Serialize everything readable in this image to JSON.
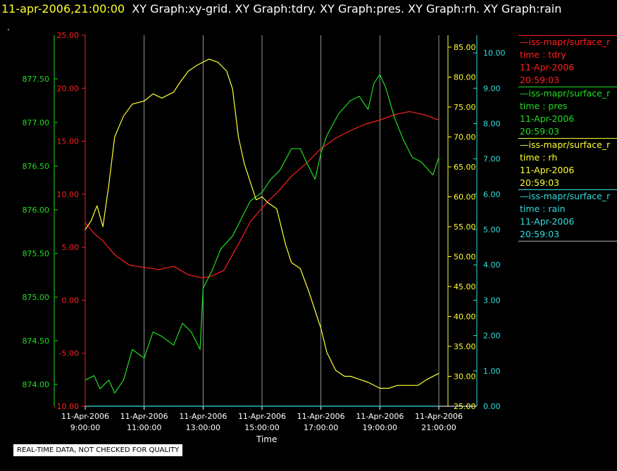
{
  "header": {
    "timestamp": "11-apr-2006,21:00:00",
    "graphs": "XY Graph:xy-grid.  XY Graph:tdry.  XY Graph:pres.  XY Graph:rh.  XY Graph:rain",
    "dot": "."
  },
  "colors": {
    "tdry": "#ff2020",
    "pres": "#22dd22",
    "rh": "#ffff33",
    "rain": "#33dddd",
    "grid": "#bbbbbb"
  },
  "legend": [
    {
      "series": "iss-mapr/surface_r",
      "label": "time : tdry",
      "date": "11-Apr-2006",
      "time": "20:59:03",
      "color": "#ff2020"
    },
    {
      "series": "iss-mapr/surface_r",
      "label": "time : pres",
      "date": "11-Apr-2006",
      "time": "20:59:03",
      "color": "#22dd22"
    },
    {
      "series": "iss-mapr/surface_r",
      "label": "time : rh",
      "date": "11-Apr-2006",
      "time": "20:59:03",
      "color": "#ffff33"
    },
    {
      "series": "iss-mapr/surface_r",
      "label": "time : rain",
      "date": "11-Apr-2006",
      "time": "20:59:03",
      "color": "#33dddd"
    }
  ],
  "footer": {
    "disclaimer": "REAL-TIME DATA, NOT CHECKED FOR QUALITY",
    "x_title": "Time"
  },
  "chart_data": {
    "type": "line",
    "xlabel": "Time",
    "x_ticks": [
      {
        "date": "11-Apr-2006",
        "time": "9:00:00",
        "hour": 9
      },
      {
        "date": "11-Apr-2006",
        "time": "11:00:00",
        "hour": 11
      },
      {
        "date": "11-Apr-2006",
        "time": "13:00:00",
        "hour": 13
      },
      {
        "date": "11-Apr-2006",
        "time": "15:00:00",
        "hour": 15
      },
      {
        "date": "11-Apr-2006",
        "time": "17:00:00",
        "hour": 17
      },
      {
        "date": "11-Apr-2006",
        "time": "19:00:00",
        "hour": 19
      },
      {
        "date": "11-Apr-2006",
        "time": "21:00:00",
        "hour": 21
      }
    ],
    "xlim": [
      9,
      21
    ],
    "axes": {
      "pres": {
        "ylim": [
          873.75,
          878.0
        ],
        "ticks": [
          "874.00",
          "874.50",
          "875.00",
          "875.50",
          "876.00",
          "876.50",
          "877.00",
          "877.50"
        ]
      },
      "tdry": {
        "ylim": [
          -10,
          25
        ],
        "ticks": [
          "-10.00",
          "-5.00",
          "0.00",
          "5.00",
          "10.00",
          "15.00",
          "20.00",
          "25.00"
        ]
      },
      "rh": {
        "ylim": [
          25,
          87
        ],
        "ticks": [
          "25.00",
          "30.00",
          "35.00",
          "40.00",
          "45.00",
          "50.00",
          "55.00",
          "60.00",
          "65.00",
          "70.00",
          "75.00",
          "80.00",
          "85.00"
        ]
      },
      "rain": {
        "ylim": [
          0,
          10.5
        ],
        "ticks": [
          "0.00",
          "1.00",
          "2.00",
          "3.00",
          "4.00",
          "5.00",
          "6.00",
          "7.00",
          "8.00",
          "9.00",
          "10.00"
        ]
      }
    },
    "series": [
      {
        "key": "tdry",
        "x": [
          9,
          9.3,
          9.6,
          10,
          10.5,
          11,
          11.5,
          12,
          12.5,
          13,
          13.3,
          13.7,
          14,
          14.3,
          14.6,
          15,
          15.3,
          15.6,
          16,
          16.5,
          17,
          17.5,
          18,
          18.5,
          19,
          19.5,
          20,
          20.5,
          21
        ],
        "values": [
          7.3,
          6.3,
          5.6,
          4.3,
          3.3,
          3.1,
          2.9,
          3.2,
          2.4,
          2.1,
          2.3,
          2.8,
          4.3,
          5.8,
          7.4,
          8.7,
          9.6,
          10.4,
          11.7,
          12.9,
          14.3,
          15.3,
          16.0,
          16.6,
          17.0,
          17.5,
          17.8,
          17.5,
          17.0
        ]
      },
      {
        "key": "pres",
        "x": [
          9,
          9.3,
          9.5,
          9.8,
          10,
          10.3,
          10.6,
          11,
          11.3,
          11.6,
          12,
          12.3,
          12.6,
          12.9,
          13,
          13.3,
          13.6,
          14,
          14.3,
          14.6,
          15,
          15.3,
          15.6,
          16,
          16.3,
          16.5,
          16.8,
          17,
          17.2,
          17.6,
          18,
          18.3,
          18.6,
          18.8,
          19,
          19.2,
          19.5,
          19.8,
          20.1,
          20.4,
          20.8,
          21
        ],
        "values": [
          874.05,
          874.1,
          873.95,
          874.05,
          873.9,
          874.05,
          874.4,
          874.3,
          874.6,
          874.55,
          874.45,
          874.7,
          874.6,
          874.4,
          875.1,
          875.3,
          875.55,
          875.7,
          875.9,
          876.1,
          876.2,
          876.35,
          876.45,
          876.7,
          876.7,
          876.55,
          876.35,
          876.65,
          876.85,
          877.1,
          877.25,
          877.3,
          877.15,
          877.45,
          877.55,
          877.4,
          877.05,
          876.8,
          876.6,
          876.55,
          876.4,
          876.6
        ]
      },
      {
        "key": "rh",
        "x": [
          9,
          9.2,
          9.4,
          9.6,
          9.8,
          10,
          10.3,
          10.6,
          11,
          11.3,
          11.6,
          12,
          12.2,
          12.5,
          12.8,
          13,
          13.2,
          13.5,
          13.8,
          14,
          14.2,
          14.4,
          14.6,
          14.8,
          15,
          15.2,
          15.5,
          15.8,
          16,
          16.3,
          16.6,
          17,
          17.2,
          17.5,
          17.8,
          18,
          18.3,
          18.6,
          19,
          19.3,
          19.6,
          20,
          20.3,
          20.6,
          21
        ],
        "values": [
          54.5,
          56,
          58.5,
          55,
          62,
          70,
          73.5,
          75.5,
          76,
          77.2,
          76.5,
          77.5,
          79,
          81,
          82,
          82.5,
          83,
          82.5,
          81,
          78,
          70,
          65.5,
          62.5,
          59.5,
          60,
          59,
          58,
          52,
          49,
          48,
          44,
          38,
          34,
          31,
          30,
          30,
          29.5,
          29,
          28,
          28,
          28.5,
          28.5,
          28.5,
          29.5,
          30.5
        ]
      },
      {
        "key": "rain",
        "x": [
          9,
          21
        ],
        "values": [
          0,
          0
        ]
      }
    ]
  }
}
